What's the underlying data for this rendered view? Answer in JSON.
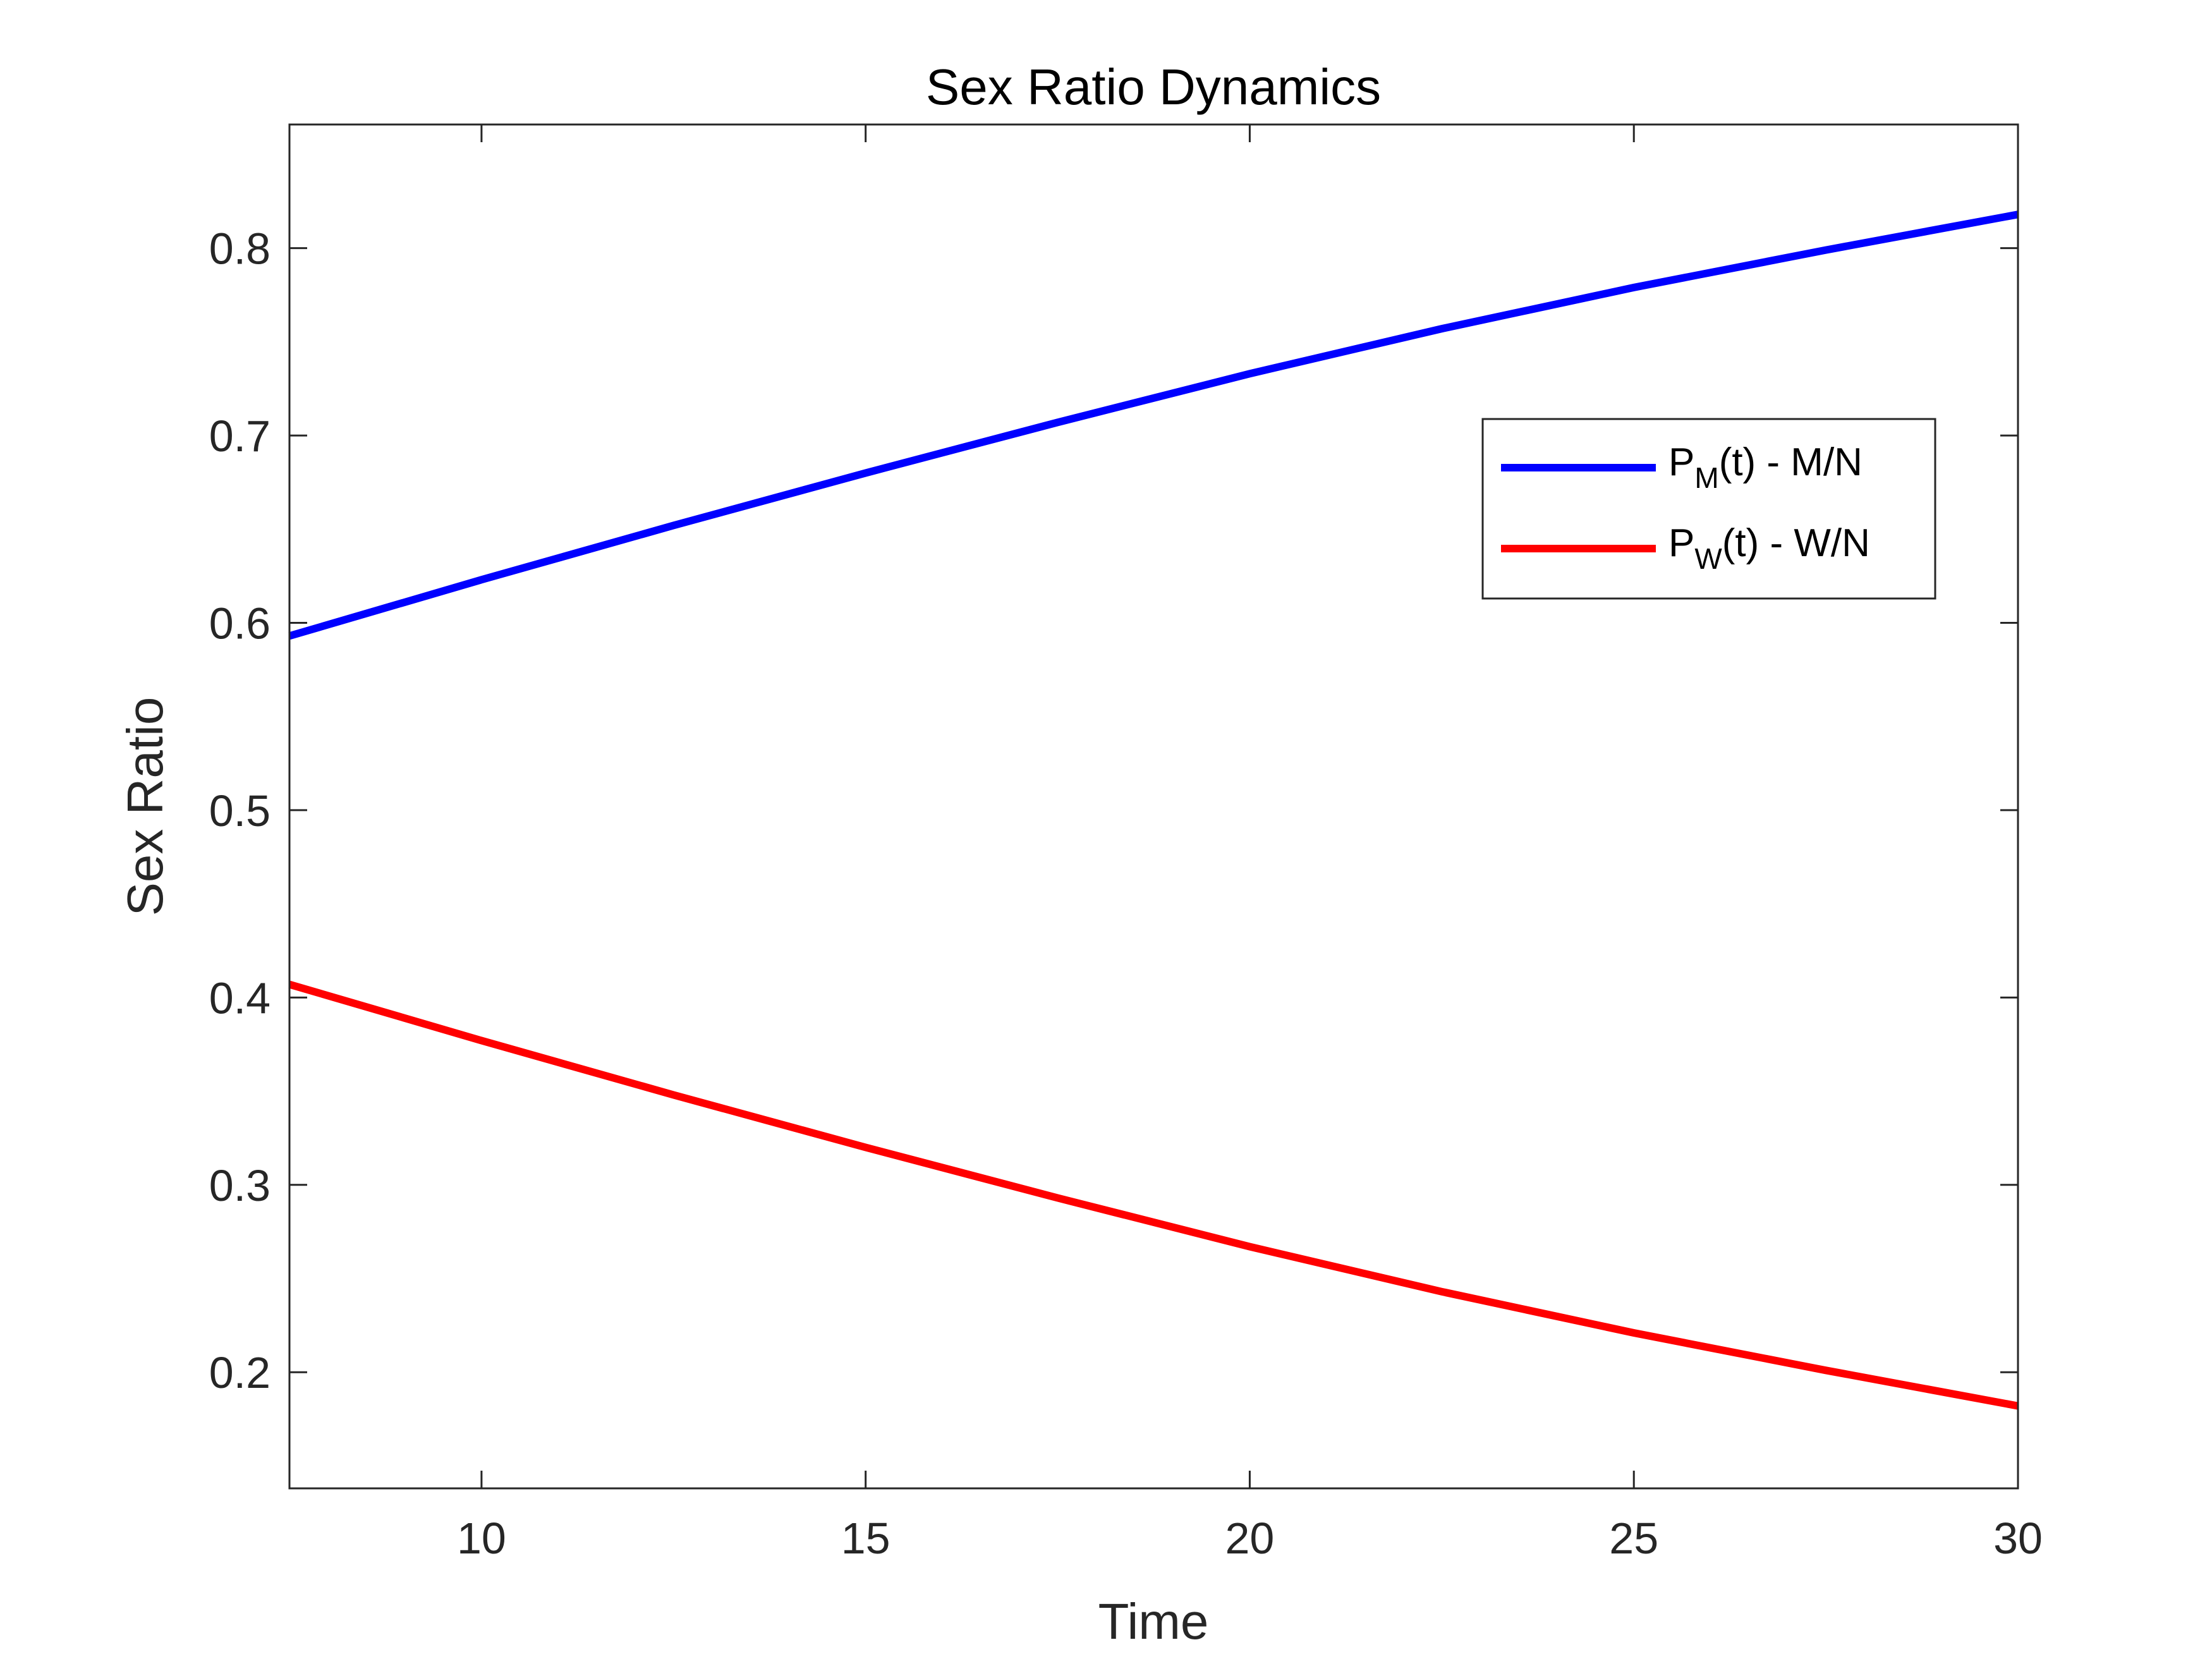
{
  "chart_data": {
    "type": "line",
    "title": "Sex Ratio Dynamics",
    "xlabel": "Time",
    "ylabel": "Sex Ratio",
    "xlim": [
      7.5,
      30
    ],
    "ylim": [
      0.138,
      0.866
    ],
    "xticks": [
      10,
      15,
      20,
      25,
      30
    ],
    "xtick_labels": [
      "10",
      "15",
      "20",
      "25",
      "30"
    ],
    "yticks": [
      0.2,
      0.3,
      0.4,
      0.5,
      0.6,
      0.7,
      0.8
    ],
    "ytick_labels": [
      "0.2",
      "0.3",
      "0.4",
      "0.5",
      "0.6",
      "0.7",
      "0.8"
    ],
    "grid": false,
    "legend_position": "upper-right",
    "x": [
      7.5,
      10,
      12.5,
      15,
      17.5,
      20,
      22.5,
      25,
      27.5,
      30
    ],
    "series": [
      {
        "name": "P_M(t) - M/N",
        "legend": {
          "prefix": "P",
          "sub": "M",
          "suffix": "(t) - M/N"
        },
        "color": "#0000ff",
        "values": [
          0.593,
          0.623,
          0.652,
          0.68,
          0.707,
          0.733,
          0.757,
          0.779,
          0.799,
          0.818
        ]
      },
      {
        "name": "P_W(t) - W/N",
        "legend": {
          "prefix": "P",
          "sub": "W",
          "suffix": "(t) - W/N"
        },
        "color": "#ff0000",
        "values": [
          0.407,
          0.377,
          0.348,
          0.32,
          0.293,
          0.267,
          0.243,
          0.221,
          0.201,
          0.182
        ]
      }
    ]
  }
}
